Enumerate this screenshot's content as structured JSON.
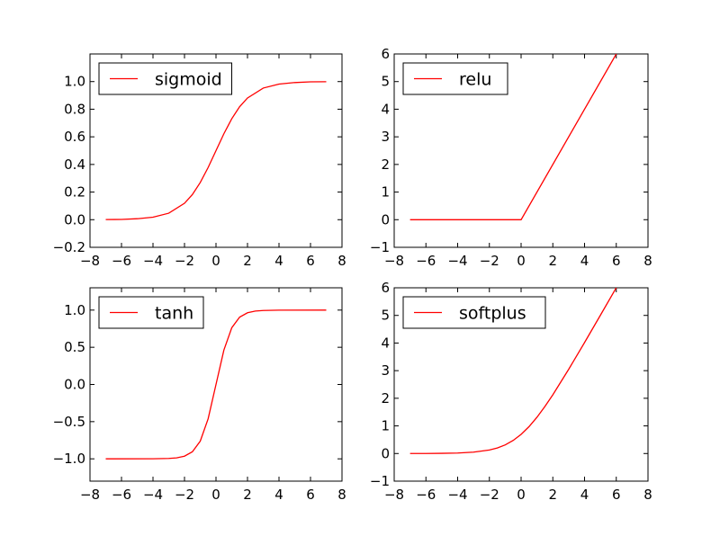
{
  "chart_data": [
    {
      "type": "line",
      "xlim": [
        -8,
        8
      ],
      "ylim": [
        -0.2,
        1.2
      ],
      "xticks": [
        -8,
        -6,
        -4,
        -2,
        0,
        2,
        4,
        6,
        8
      ],
      "xtick_labels": [
        "−8",
        "−6",
        "−4",
        "−2",
        "0",
        "2",
        "4",
        "6",
        "8"
      ],
      "yticks": [
        -0.2,
        0.0,
        0.2,
        0.4,
        0.6,
        0.8,
        1.0
      ],
      "ytick_labels": [
        "−0.2",
        "0.0",
        "0.2",
        "0.4",
        "0.6",
        "0.8",
        "1.0"
      ],
      "legend_position": "upper-left",
      "grid": false,
      "series": [
        {
          "name": "sigmoid",
          "color": "#ff0000",
          "x": [
            -7,
            -6,
            -5,
            -4,
            -3,
            -2,
            -1.5,
            -1,
            -0.5,
            0,
            0.5,
            1,
            1.5,
            2,
            3,
            4,
            5,
            6,
            7
          ],
          "y": [
            0.001,
            0.002,
            0.007,
            0.018,
            0.047,
            0.119,
            0.182,
            0.269,
            0.378,
            0.5,
            0.622,
            0.731,
            0.818,
            0.881,
            0.953,
            0.982,
            0.993,
            0.998,
            0.999
          ]
        }
      ]
    },
    {
      "type": "line",
      "xlim": [
        -8,
        8
      ],
      "ylim": [
        -1,
        6
      ],
      "xticks": [
        -8,
        -6,
        -4,
        -2,
        0,
        2,
        4,
        6,
        8
      ],
      "xtick_labels": [
        "−8",
        "−6",
        "−4",
        "−2",
        "0",
        "2",
        "4",
        "6",
        "8"
      ],
      "yticks": [
        -1,
        0,
        1,
        2,
        3,
        4,
        5,
        6
      ],
      "ytick_labels": [
        "−1",
        "0",
        "1",
        "2",
        "3",
        "4",
        "5",
        "6"
      ],
      "legend_position": "upper-left",
      "grid": false,
      "series": [
        {
          "name": "relu",
          "color": "#ff0000",
          "x": [
            -7,
            0,
            6
          ],
          "y": [
            0,
            0,
            6
          ]
        }
      ]
    },
    {
      "type": "line",
      "xlim": [
        -8,
        8
      ],
      "ylim": [
        -1.3,
        1.3
      ],
      "xticks": [
        -8,
        -6,
        -4,
        -2,
        0,
        2,
        4,
        6,
        8
      ],
      "xtick_labels": [
        "−8",
        "−6",
        "−4",
        "−2",
        "0",
        "2",
        "4",
        "6",
        "8"
      ],
      "yticks": [
        -1.0,
        -0.5,
        0.0,
        0.5,
        1.0
      ],
      "ytick_labels": [
        "−1.0",
        "−0.5",
        "0.0",
        "0.5",
        "1.0"
      ],
      "legend_position": "upper-left",
      "grid": false,
      "series": [
        {
          "name": "tanh",
          "color": "#ff0000",
          "x": [
            -7,
            -4,
            -3,
            -2.5,
            -2,
            -1.5,
            -1,
            -0.5,
            0,
            0.5,
            1,
            1.5,
            2,
            2.5,
            3,
            4,
            7
          ],
          "y": [
            -1.0,
            -0.999,
            -0.995,
            -0.987,
            -0.964,
            -0.905,
            -0.762,
            -0.462,
            0,
            0.462,
            0.762,
            0.905,
            0.964,
            0.987,
            0.995,
            0.999,
            1.0
          ]
        }
      ]
    },
    {
      "type": "line",
      "xlim": [
        -8,
        8
      ],
      "ylim": [
        -1,
        6
      ],
      "xticks": [
        -8,
        -6,
        -4,
        -2,
        0,
        2,
        4,
        6,
        8
      ],
      "xtick_labels": [
        "−8",
        "−6",
        "−4",
        "−2",
        "0",
        "2",
        "4",
        "6",
        "8"
      ],
      "yticks": [
        -1,
        0,
        1,
        2,
        3,
        4,
        5,
        6
      ],
      "ytick_labels": [
        "−1",
        "0",
        "1",
        "2",
        "3",
        "4",
        "5",
        "6"
      ],
      "legend_position": "upper-left",
      "grid": false,
      "series": [
        {
          "name": "softplus",
          "color": "#ff0000",
          "x": [
            -7,
            -6,
            -5,
            -4,
            -3,
            -2,
            -1.5,
            -1,
            -0.5,
            0,
            0.5,
            1,
            1.5,
            2,
            3,
            4,
            5,
            6
          ],
          "y": [
            0.001,
            0.002,
            0.007,
            0.018,
            0.049,
            0.127,
            0.201,
            0.313,
            0.474,
            0.693,
            0.974,
            1.313,
            1.701,
            2.127,
            3.049,
            4.018,
            5.007,
            6.002
          ]
        }
      ]
    }
  ]
}
